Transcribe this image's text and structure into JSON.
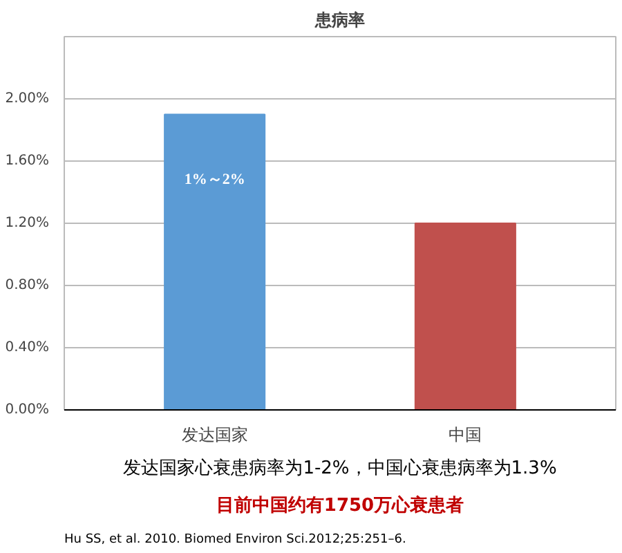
{
  "chart_data": {
    "type": "bar",
    "title": "患病率",
    "categories": [
      "发达国家",
      "中国"
    ],
    "values": [
      1.9,
      1.2
    ],
    "colors": [
      "#5b9bd5",
      "#c0504d"
    ],
    "value_labels": [
      "1%～2%",
      null
    ],
    "ylim": [
      0,
      2.4
    ],
    "yticks": [
      {
        "value": 0,
        "label": "0.00%"
      },
      {
        "value": 0.4,
        "label": "0.40%"
      },
      {
        "value": 0.8,
        "label": "0.80%"
      },
      {
        "value": 1.2,
        "label": "1.20%"
      },
      {
        "value": 1.6,
        "label": "1.60%"
      },
      {
        "value": 2.0,
        "label": "2.00%"
      },
      {
        "value": 2.4,
        "label": null
      }
    ],
    "grid": "y",
    "annotations": [
      "发达国家心衰患病率为1-2%，中国心衰患病率为1.3%",
      "目前中国约有1750万心衰患者",
      "Hu SS, et al. 2010. Biomed Environ Sci.2012;25:251–6."
    ]
  }
}
